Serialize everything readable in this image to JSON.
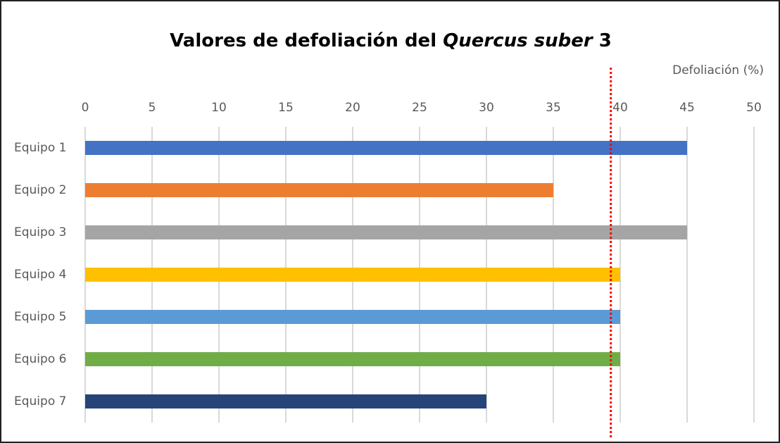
{
  "chart_data": {
    "type": "bar",
    "orientation": "horizontal",
    "title": [
      {
        "text": "Valores de defoliación del ",
        "italic": false
      },
      {
        "text": "Quercus suber",
        "italic": true
      },
      {
        "text": "  3",
        "italic": false
      }
    ],
    "x_label": "Defoliación (%)",
    "categories": [
      "Equipo 1",
      "Equipo 2",
      "Equipo 3",
      "Equipo 4",
      "Equipo 5",
      "Equipo 6",
      "Equipo 7"
    ],
    "values": [
      45,
      35,
      45,
      40,
      40,
      40,
      30
    ],
    "colors": [
      "#4472c4",
      "#ed7d31",
      "#a5a5a5",
      "#ffc000",
      "#5b9bd5",
      "#70ad47",
      "#264478"
    ],
    "xlim": [
      0,
      50
    ],
    "xticks": [
      0,
      5,
      10,
      15,
      20,
      25,
      30,
      35,
      40,
      45,
      50
    ],
    "grid": true,
    "reference_line": {
      "value": 39.3,
      "color": "#ff0000"
    }
  }
}
